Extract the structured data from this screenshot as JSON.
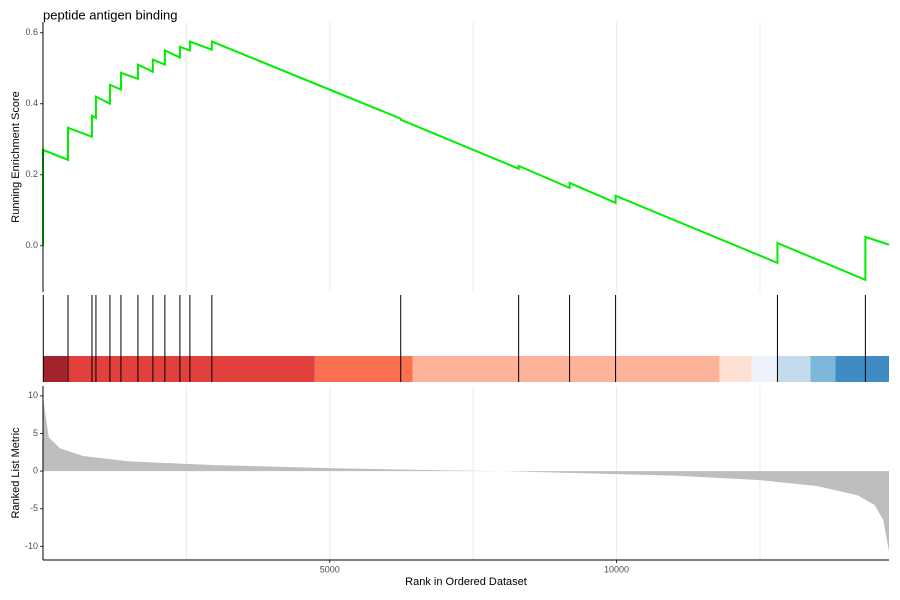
{
  "chart_data": [
    {
      "type": "line",
      "title": "peptide antigen binding",
      "ylabel": "Running Enrichment Score",
      "color": "#00ee00",
      "xlim": [
        0,
        14750
      ],
      "x_grid": [
        2500,
        5000,
        7500,
        10000,
        12500
      ],
      "ylim": [
        -0.13,
        0.63
      ],
      "yticks": [
        {
          "value": 0,
          "label": "0.0"
        },
        0.2,
        0.4,
        0.6
      ],
      "x": [
        0,
        0,
        436,
        436,
        854,
        854,
        923,
        923,
        1167,
        1167,
        1359,
        1359,
        1655,
        1655,
        1916,
        1916,
        2125,
        2125,
        2387,
        2387,
        2561,
        2561,
        2944,
        2944,
        6237,
        6237,
        8293,
        8293,
        9181,
        9181,
        9983,
        9983,
        12805,
        12805,
        14338,
        14338,
        14750
      ],
      "values": [
        0,
        0.27,
        0.242,
        0.332,
        0.307,
        0.366,
        0.36,
        0.42,
        0.4,
        0.453,
        0.44,
        0.487,
        0.47,
        0.51,
        0.49,
        0.524,
        0.51,
        0.55,
        0.53,
        0.56,
        0.55,
        0.575,
        0.552,
        0.575,
        0.358,
        0.355,
        0.217,
        0.225,
        0.163,
        0.177,
        0.121,
        0.141,
        -0.048,
        0.008,
        -0.096,
        0.025,
        0.003
      ]
    },
    {
      "type": "rug",
      "xlim": [
        0,
        14750
      ],
      "color": "#000000",
      "x": [
        5,
        436,
        854,
        923,
        1167,
        1359,
        1655,
        1916,
        2125,
        2387,
        2561,
        2944,
        6237,
        8293,
        9181,
        9983,
        12805,
        14338
      ]
    },
    {
      "type": "band",
      "xlim": [
        0,
        14750
      ],
      "bins": [
        0,
        418,
        4739,
        6446,
        11794,
        12352,
        12805,
        13380,
        13815,
        14750
      ],
      "colors": [
        "#a3232a",
        "#e2403c",
        "#fb7050",
        "#fcb39a",
        "#fee1d4",
        "#eef3fb",
        "#c3dbec",
        "#7db8db",
        "#3f8cc5"
      ]
    },
    {
      "type": "area",
      "ylabel": "Ranked List Metric",
      "xlabel": "Rank in Ordered Dataset",
      "color": "#bebebe",
      "xlim": [
        0,
        14750
      ],
      "xticks": [
        5000,
        10000
      ],
      "x_minor_grid": [
        2500,
        7500,
        12500
      ],
      "ylim": [
        -11.8,
        11.3
      ],
      "yticks": [
        -10,
        -5,
        0,
        5,
        10
      ],
      "x": [
        0,
        100,
        300,
        700,
        1500,
        3000,
        5000,
        7000,
        8000,
        9000,
        11000,
        12500,
        13500,
        14200,
        14500,
        14650,
        14750
      ],
      "values": [
        9.8,
        4.5,
        3.0,
        2.0,
        1.3,
        0.8,
        0.4,
        0.1,
        0,
        -0.2,
        -0.6,
        -1.2,
        -2.0,
        -3.2,
        -4.5,
        -6.5,
        -10.7
      ]
    }
  ]
}
